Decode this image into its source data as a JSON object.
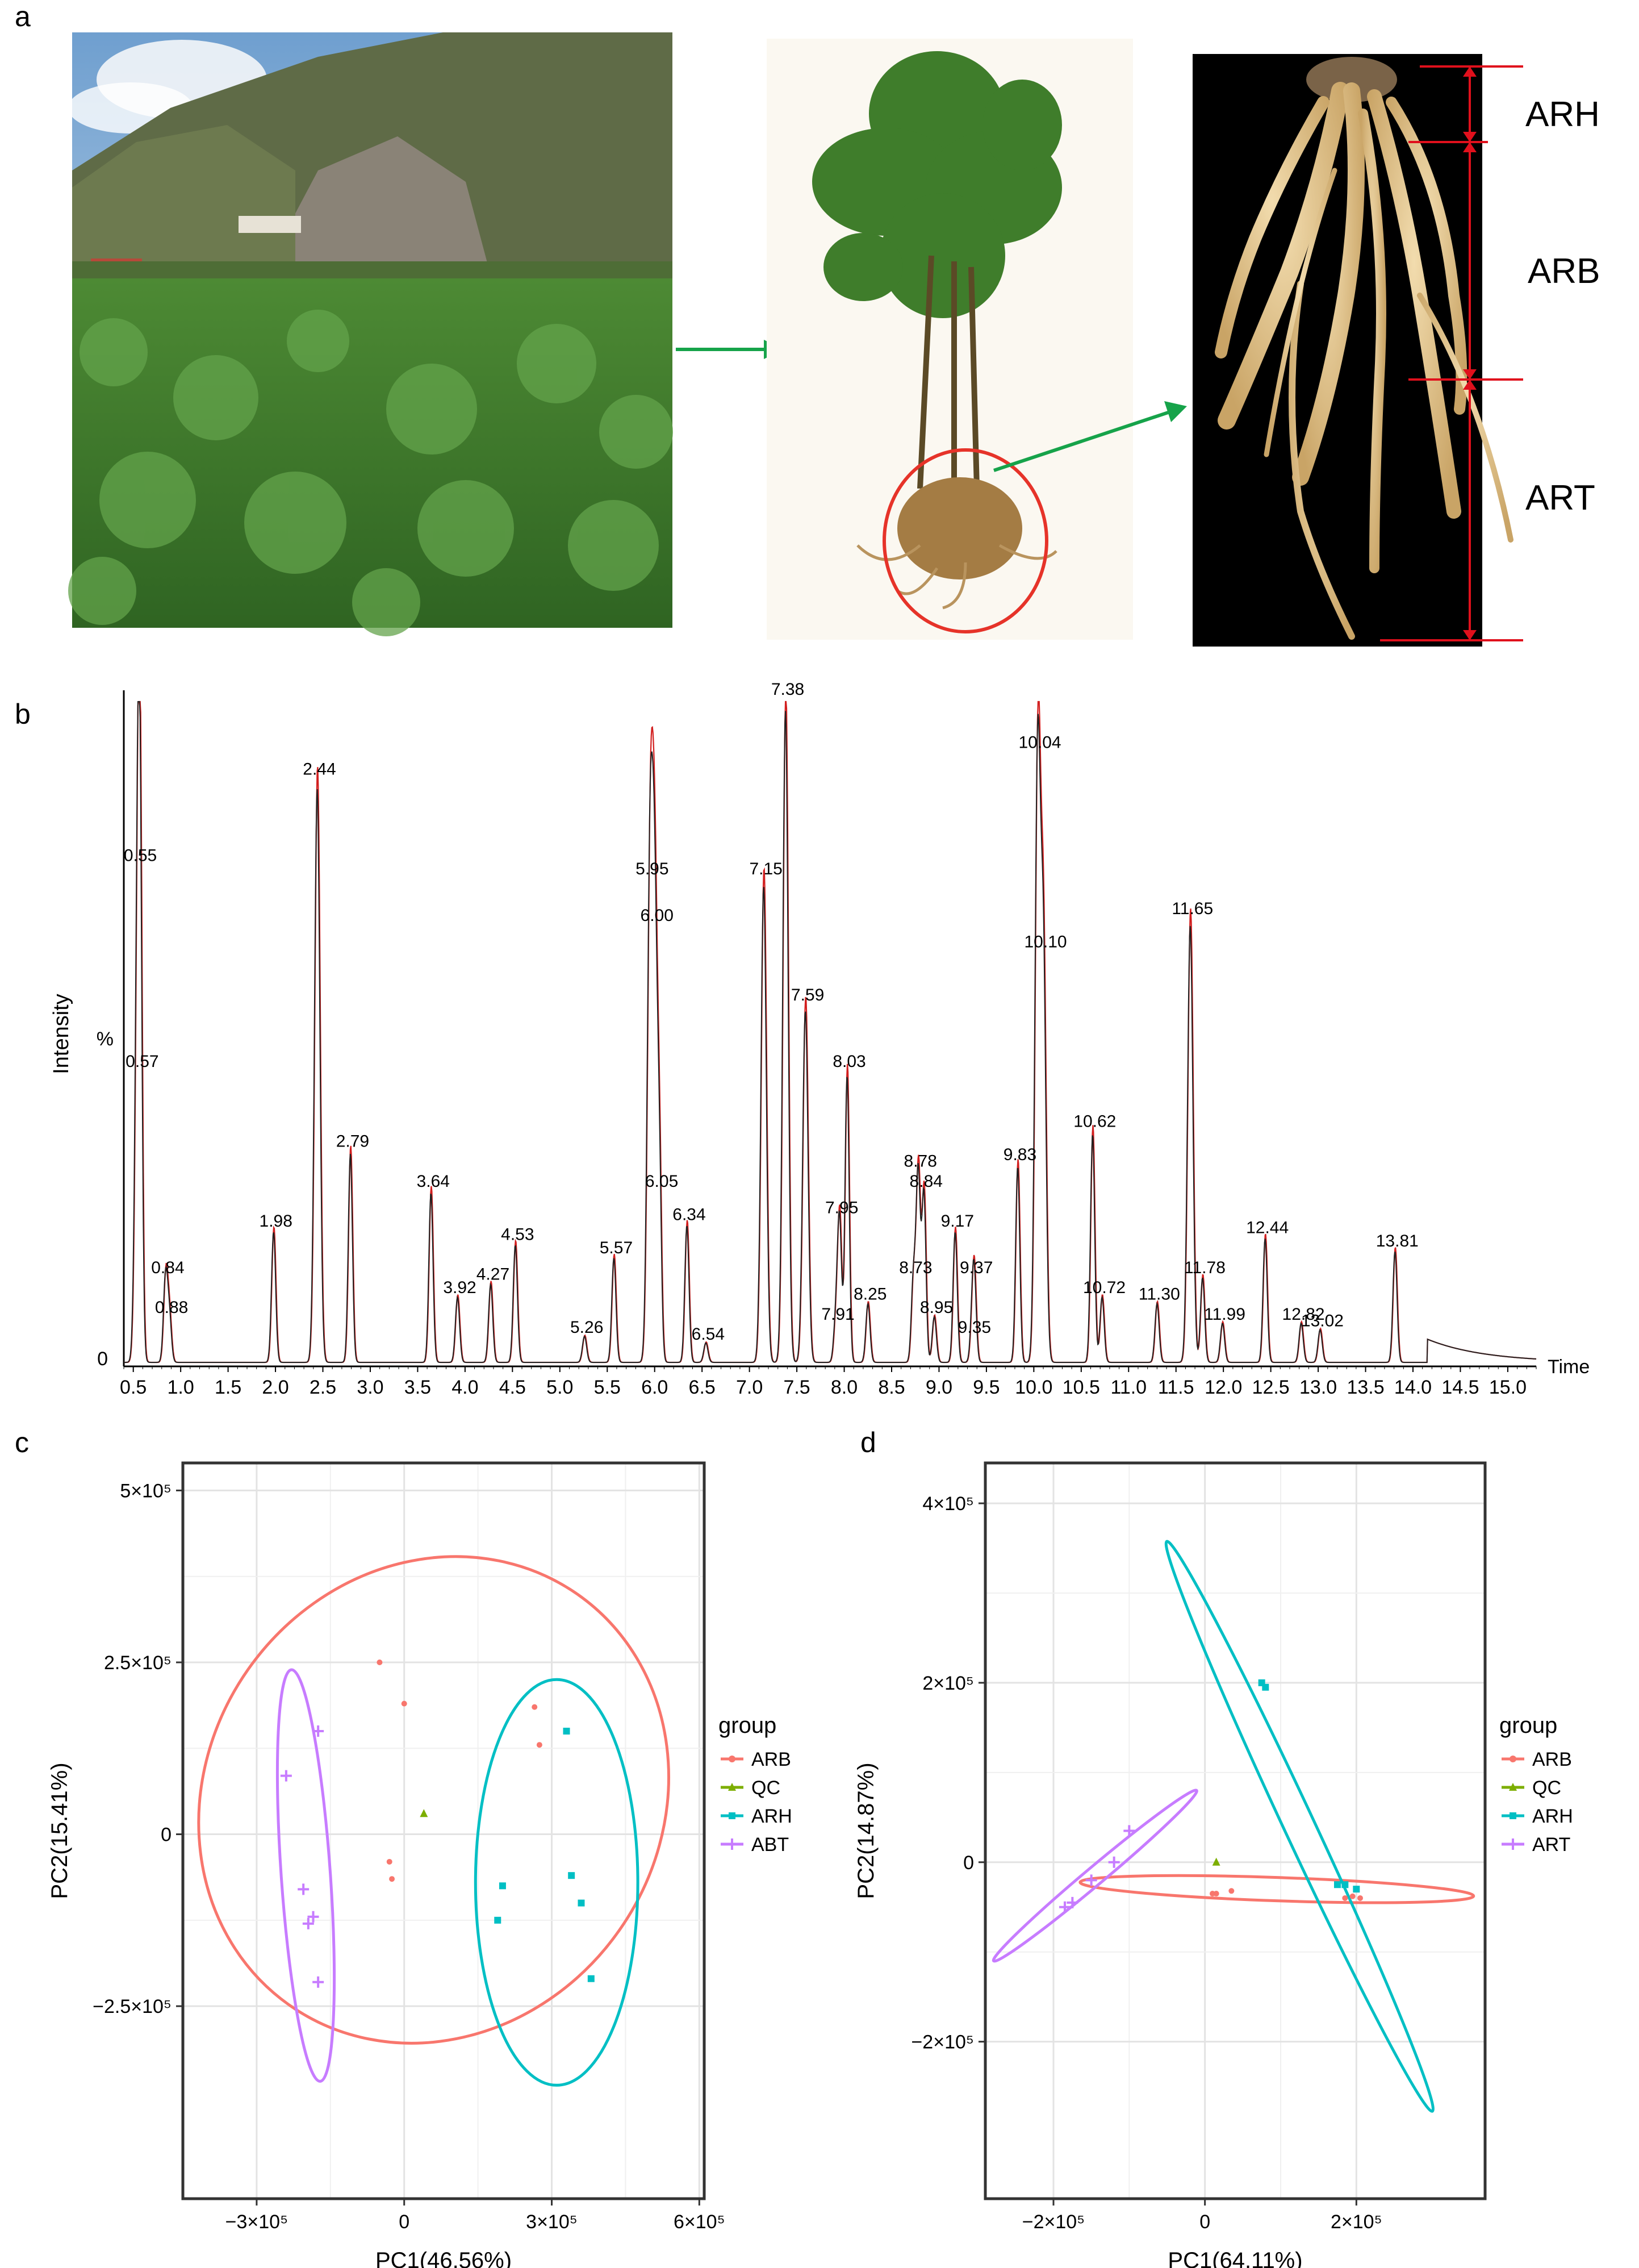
{
  "panels": {
    "a": "a",
    "b": "b",
    "c": "c",
    "d": "d"
  },
  "colors": {
    "ARB": "#F8766D",
    "QC": "#7CAE00",
    "ARH": "#00BFC4",
    "ABT": "#C77CFF",
    "ART": "#C77CFF",
    "sky": "#9fc0df",
    "mountain": "#5d6a4a",
    "field": "#3f7a2e",
    "root": "#e0c48a",
    "measure": "#e0101c",
    "arrow": "#16a34a"
  },
  "root_labels": [
    "ARH",
    "ARB",
    "ART"
  ],
  "chart_data": [
    {
      "id": "chromatogram",
      "type": "line",
      "xlabel": "Time",
      "ylabel": "Intensity",
      "ytick_labels": [
        "%",
        "0"
      ],
      "xlim": [
        0.4,
        15.3
      ],
      "xticks": [
        0.5,
        1.0,
        1.5,
        2.0,
        2.5,
        3.0,
        3.5,
        4.0,
        4.5,
        5.0,
        5.5,
        6.0,
        6.5,
        7.0,
        7.5,
        8.0,
        8.5,
        9.0,
        9.5,
        10.0,
        10.5,
        11.0,
        11.5,
        12.0,
        12.5,
        13.0,
        13.5,
        14.0,
        14.5,
        15.0
      ],
      "xtick_labels": [
        "0.5",
        "1.0",
        "1.5",
        "2.0",
        "2.5",
        "3.0",
        "3.5",
        "4.0",
        "4.5",
        "5.0",
        "5.5",
        "6.0",
        "6.5",
        "7.0",
        "7.5",
        "8.0",
        "8.5",
        "9.0",
        "9.5",
        "10.0",
        "10.5",
        "11.0",
        "11.5",
        "12.0",
        "12.5",
        "13.0",
        "13.5",
        "14.0",
        "14.5",
        "15.0"
      ],
      "ylim": [
        0,
        100
      ],
      "peaks": [
        {
          "t": 0.57,
          "h": 44,
          "label": "0.57"
        },
        {
          "t": 0.55,
          "h": 75,
          "label": "0.55"
        },
        {
          "t": 0.84,
          "h": 13,
          "label": "0.84"
        },
        {
          "t": 0.88,
          "h": 7,
          "label": "0.88"
        },
        {
          "t": 1.98,
          "h": 20,
          "label": "1.98"
        },
        {
          "t": 2.44,
          "h": 88,
          "label": "2.44"
        },
        {
          "t": 2.79,
          "h": 32,
          "label": "2.79"
        },
        {
          "t": 3.64,
          "h": 26,
          "label": "3.64"
        },
        {
          "t": 3.92,
          "h": 10,
          "label": "3.92"
        },
        {
          "t": 4.27,
          "h": 12,
          "label": "4.27"
        },
        {
          "t": 4.53,
          "h": 18,
          "label": "4.53"
        },
        {
          "t": 5.26,
          "h": 4,
          "label": "5.26"
        },
        {
          "t": 5.57,
          "h": 16,
          "label": "5.57"
        },
        {
          "t": 5.95,
          "h": 73,
          "label": "5.95"
        },
        {
          "t": 6.0,
          "h": 66,
          "label": "6.00"
        },
        {
          "t": 6.05,
          "h": 26,
          "label": "6.05"
        },
        {
          "t": 6.34,
          "h": 21,
          "label": "6.34"
        },
        {
          "t": 6.54,
          "h": 3,
          "label": "6.54"
        },
        {
          "t": 7.15,
          "h": 73,
          "label": "7.15"
        },
        {
          "t": 7.38,
          "h": 100,
          "label": "7.38"
        },
        {
          "t": 7.59,
          "h": 54,
          "label": "7.59"
        },
        {
          "t": 7.91,
          "h": 6,
          "label": "7.91"
        },
        {
          "t": 7.95,
          "h": 22,
          "label": "7.95"
        },
        {
          "t": 8.03,
          "h": 44,
          "label": "8.03"
        },
        {
          "t": 8.25,
          "h": 9,
          "label": "8.25"
        },
        {
          "t": 8.73,
          "h": 13,
          "label": "8.73"
        },
        {
          "t": 8.78,
          "h": 29,
          "label": "8.78"
        },
        {
          "t": 8.84,
          "h": 26,
          "label": "8.84"
        },
        {
          "t": 8.95,
          "h": 7,
          "label": "8.95"
        },
        {
          "t": 9.17,
          "h": 20,
          "label": "9.17"
        },
        {
          "t": 9.35,
          "h": 4,
          "label": "9.35"
        },
        {
          "t": 9.37,
          "h": 13,
          "label": "9.37"
        },
        {
          "t": 9.83,
          "h": 30,
          "label": "9.83"
        },
        {
          "t": 10.04,
          "h": 92,
          "label": "10.04"
        },
        {
          "t": 10.1,
          "h": 62,
          "label": "10.10"
        },
        {
          "t": 10.62,
          "h": 35,
          "label": "10.62"
        },
        {
          "t": 10.72,
          "h": 10,
          "label": "10.72"
        },
        {
          "t": 11.3,
          "h": 9,
          "label": "11.30"
        },
        {
          "t": 11.65,
          "h": 67,
          "label": "11.65"
        },
        {
          "t": 11.78,
          "h": 13,
          "label": "11.78"
        },
        {
          "t": 11.99,
          "h": 6,
          "label": "11.99"
        },
        {
          "t": 12.44,
          "h": 19,
          "label": "12.44"
        },
        {
          "t": 12.82,
          "h": 6,
          "label": "12.82"
        },
        {
          "t": 13.02,
          "h": 5,
          "label": "13.02"
        },
        {
          "t": 13.81,
          "h": 17,
          "label": "13.81"
        }
      ]
    },
    {
      "id": "pca-c",
      "type": "scatter",
      "xlabel": "PC1(46.56%)",
      "ylabel": "PC2(15.41%)",
      "xlim": [
        -450000,
        610000
      ],
      "ylim": [
        -530000,
        540000
      ],
      "xticks": [
        -300000,
        0,
        300000,
        600000
      ],
      "xtick_labels": [
        "−3×10⁵",
        "0",
        "3×10⁵",
        "6×10⁵"
      ],
      "yticks": [
        -250000,
        0,
        250000,
        500000
      ],
      "ytick_labels": [
        "−2.5×10⁵",
        "0",
        "2.5×10⁵",
        "5×10⁵"
      ],
      "legend_title": "group",
      "legend": [
        "ARB",
        "QC",
        "ARH",
        "ABT"
      ],
      "series": [
        {
          "name": "ARB",
          "marker": "dot",
          "points": [
            [
              -50000,
              250000
            ],
            [
              0,
              190000
            ],
            [
              265000,
              185000
            ],
            [
              275000,
              130000
            ],
            [
              -30000,
              -40000
            ],
            [
              -25000,
              -65000
            ]
          ],
          "ellipse": {
            "cx": 60000,
            "cy": 50000,
            "rx": 510000,
            "ry": 330000,
            "angle": -55
          }
        },
        {
          "name": "QC",
          "marker": "tri",
          "points": [
            [
              40000,
              30000
            ]
          ]
        },
        {
          "name": "ARH",
          "marker": "sq",
          "points": [
            [
              330000,
              150000
            ],
            [
              200000,
              -75000
            ],
            [
              340000,
              -60000
            ],
            [
              360000,
              -100000
            ],
            [
              190000,
              -125000
            ],
            [
              380000,
              -210000
            ]
          ],
          "ellipse": {
            "cx": 310000,
            "cy": -70000,
            "rx": 165000,
            "ry": 295000,
            "angle": 0
          }
        },
        {
          "name": "ABT",
          "marker": "plus",
          "points": [
            [
              -240000,
              85000
            ],
            [
              -175000,
              150000
            ],
            [
              -205000,
              -80000
            ],
            [
              -185000,
              -120000
            ],
            [
              -195000,
              -130000
            ],
            [
              -175000,
              -215000
            ]
          ],
          "ellipse": {
            "cx": -200000,
            "cy": -60000,
            "rx": 50000,
            "ry": 300000,
            "angle": -4
          }
        }
      ]
    },
    {
      "id": "pca-d",
      "type": "scatter",
      "xlabel": "PC1(64.11%)",
      "ylabel": "PC2(14.87%)",
      "xlim": [
        -290000,
        370000
      ],
      "ylim": [
        -375000,
        445000
      ],
      "xticks": [
        -200000,
        0,
        200000
      ],
      "xtick_labels": [
        "−2×10⁵",
        "0",
        "2×10⁵"
      ],
      "yticks": [
        -200000,
        0,
        200000,
        400000
      ],
      "ytick_labels": [
        "−2×10⁵",
        "0",
        "2×10⁵",
        "4×10⁵"
      ],
      "legend_title": "group",
      "legend": [
        "ARB",
        "QC",
        "ARH",
        "ART"
      ],
      "series": [
        {
          "name": "ARB",
          "marker": "dot",
          "points": [
            [
              10000,
              -35000
            ],
            [
              15000,
              -35000
            ],
            [
              35000,
              -32000
            ],
            [
              185000,
              -40000
            ],
            [
              195000,
              -38000
            ],
            [
              205000,
              -40000
            ]
          ],
          "ellipse": {
            "cx": 95000,
            "cy": -30000,
            "rx": 260000,
            "ry": 13000,
            "angle": 2
          }
        },
        {
          "name": "QC",
          "marker": "tri",
          "points": [
            [
              15000,
              0
            ]
          ]
        },
        {
          "name": "ARH",
          "marker": "sq",
          "points": [
            [
              75000,
              200000
            ],
            [
              80000,
              195000
            ],
            [
              175000,
              -25000
            ],
            [
              185000,
              -25000
            ],
            [
              200000,
              -30000
            ]
          ],
          "ellipse": {
            "cx": 125000,
            "cy": 40000,
            "rx": 415000,
            "ry": 17000,
            "angle": 65
          }
        },
        {
          "name": "ART",
          "marker": "plus",
          "points": [
            [
              -100000,
              35000
            ],
            [
              -120000,
              0
            ],
            [
              -150000,
              -20000
            ],
            [
              -175000,
              -45000
            ],
            [
              -185000,
              -50000
            ]
          ],
          "ellipse": {
            "cx": -145000,
            "cy": -15000,
            "rx": 175000,
            "ry": 10000,
            "angle": -40
          }
        }
      ]
    }
  ]
}
